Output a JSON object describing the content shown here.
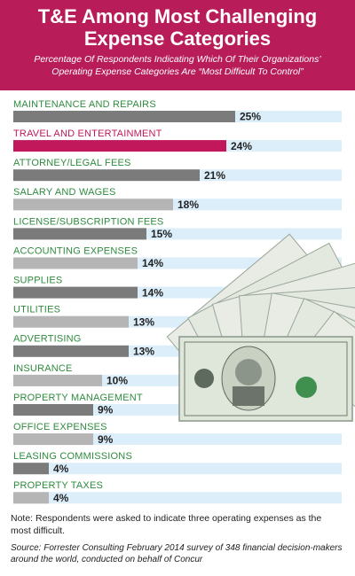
{
  "chart_data": {
    "type": "barh",
    "title": "T&E Among Most Challenging Expense Categories",
    "subtitle": "Percentage Of Respondents Indicating Which Of Their Organizations’ Operating Expense Categories Are “Most Difficult To Control”",
    "categories": [
      "MAINTENANCE AND REPAIRS",
      "TRAVEL AND ENTERTAINMENT",
      "ATTORNEY/LEGAL FEES",
      "SALARY AND WAGES",
      "LICENSE/SUBSCRIPTION FEES",
      "ACCOUNTING EXPENSES",
      "SUPPLIES",
      "UTILITIES",
      "ADVERTISING",
      "INSURANCE",
      "PROPERTY MANAGEMENT",
      "OFFICE EXPENSES",
      "LEASING COMMISSIONS",
      "PROPERTY TAXES"
    ],
    "values": [
      25,
      24,
      21,
      18,
      15,
      14,
      14,
      13,
      13,
      10,
      9,
      9,
      4,
      4
    ],
    "value_labels": [
      "25%",
      "24%",
      "21%",
      "18%",
      "15%",
      "14%",
      "14%",
      "13%",
      "13%",
      "10%",
      "9%",
      "9%",
      "4%",
      "4%"
    ],
    "colors": [
      "#7b7b7b",
      "#c0185a",
      "#7b7b7b",
      "#b5b5b5",
      "#7b7b7b",
      "#b5b5b5",
      "#7b7b7b",
      "#b5b5b5",
      "#7b7b7b",
      "#b5b5b5",
      "#7b7b7b",
      "#b5b5b5",
      "#7b7b7b",
      "#b5b5b5"
    ],
    "label_colors": [
      "#2e8b3e",
      "#c0185a",
      "#2e8b3e",
      "#2e8b3e",
      "#2e8b3e",
      "#2e8b3e",
      "#2e8b3e",
      "#2e8b3e",
      "#2e8b3e",
      "#2e8b3e",
      "#2e8b3e",
      "#2e8b3e",
      "#2e8b3e",
      "#2e8b3e"
    ],
    "note": "Note: Respondents were asked to indicate three operating expenses as the most difficult.",
    "source": "Source: Forrester Consulting February 2014 survey of 348 financial decision-makers around the world, conducted on behalf of Concur"
  }
}
